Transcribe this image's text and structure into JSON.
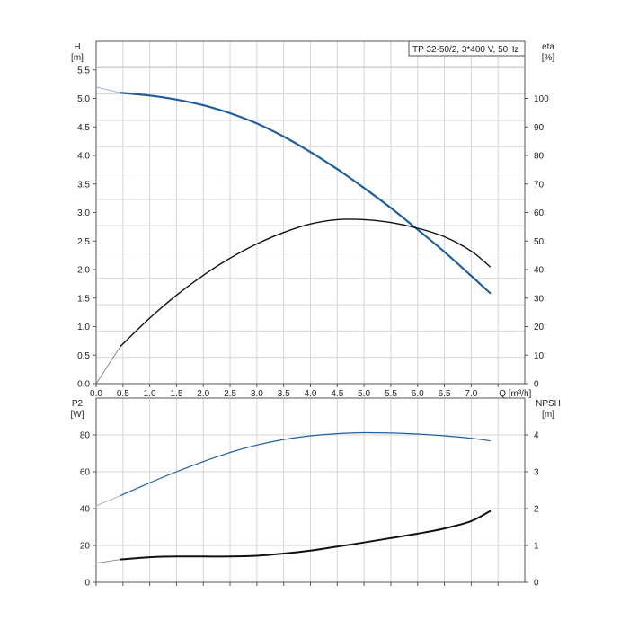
{
  "chart_data": [
    {
      "type": "line",
      "id": "top",
      "title": "TP 32-50/2, 3*400 V, 50Hz",
      "xlabel": "Q [m³/h]",
      "x_ticks": [
        "0.0",
        "0.5",
        "1.0",
        "1.5",
        "2.0",
        "2.5",
        "3.0",
        "3.5",
        "4.0",
        "4.5",
        "5.0",
        "5.5",
        "6.0",
        "6.5",
        "7.0"
      ],
      "xlim": [
        0,
        8.0
      ],
      "left_axis": {
        "label_line1": "H",
        "label_line2": "[m]",
        "ylim": [
          0,
          6.0
        ],
        "ticks": [
          "0.0",
          "0.5",
          "1.0",
          "1.5",
          "2.0",
          "2.5",
          "3.0",
          "3.5",
          "4.0",
          "4.5",
          "5.0",
          "5.5"
        ]
      },
      "right_axis": {
        "label_line1": "eta",
        "label_line2": "[%]",
        "ylim": [
          0,
          120
        ],
        "ticks": [
          "0",
          "10",
          "20",
          "30",
          "40",
          "50",
          "60",
          "70",
          "80",
          "90",
          "100"
        ]
      },
      "grid": true,
      "series": [
        {
          "axis": "left",
          "color": "#1f5fa0",
          "width": 2.2,
          "x": [
            0.45,
            1.0,
            1.5,
            2.0,
            2.5,
            3.0,
            3.5,
            4.0,
            4.5,
            5.0,
            5.5,
            6.0,
            6.5,
            7.0,
            7.35
          ],
          "y": [
            5.1,
            5.05,
            4.98,
            4.88,
            4.74,
            4.56,
            4.33,
            4.06,
            3.76,
            3.43,
            3.08,
            2.7,
            2.31,
            1.89,
            1.59
          ]
        },
        {
          "axis": "left",
          "color": "#8aa9c8",
          "width": 0.8,
          "x": [
            0.0,
            0.45
          ],
          "y": [
            5.2,
            5.1
          ]
        },
        {
          "axis": "right",
          "color": "#111111",
          "width": 1.4,
          "x": [
            0.45,
            1.0,
            1.5,
            2.0,
            2.5,
            3.0,
            3.5,
            4.0,
            4.5,
            5.0,
            5.5,
            6.0,
            6.5,
            7.0,
            7.35
          ],
          "y": [
            13,
            23,
            31,
            38,
            44,
            49,
            53,
            56,
            57.5,
            57.5,
            56.5,
            54.5,
            51.5,
            46.5,
            41
          ]
        },
        {
          "axis": "right",
          "color": "#777777",
          "width": 0.8,
          "x": [
            0.0,
            0.45
          ],
          "y": [
            0,
            13
          ]
        }
      ]
    },
    {
      "type": "line",
      "id": "bottom",
      "xlim": [
        0,
        8.0
      ],
      "left_axis": {
        "label_line1": "P2",
        "label_line2": "[W]",
        "ylim": [
          0,
          100
        ],
        "ticks": [
          "0",
          "20",
          "40",
          "60",
          "80"
        ]
      },
      "right_axis": {
        "label_line1": "NPSH",
        "label_line2": "[m]",
        "ylim": [
          0,
          5
        ],
        "ticks": [
          "0",
          "1",
          "2",
          "3",
          "4"
        ]
      },
      "grid": true,
      "series": [
        {
          "axis": "left",
          "color": "#1f5fa0",
          "width": 1.2,
          "x": [
            0.45,
            1.0,
            1.5,
            2.0,
            2.5,
            3.0,
            3.5,
            4.0,
            4.5,
            5.0,
            5.5,
            6.0,
            6.5,
            7.0,
            7.35
          ],
          "y": [
            47,
            54,
            60,
            65.5,
            70.5,
            74.5,
            77.5,
            79.5,
            80.7,
            81.2,
            81.0,
            80.5,
            79.5,
            78.2,
            76.8
          ]
        },
        {
          "axis": "left",
          "color": "#8aa9c8",
          "width": 0.8,
          "x": [
            0.0,
            0.45
          ],
          "y": [
            41.5,
            47
          ]
        },
        {
          "axis": "right",
          "color": "#111111",
          "width": 2.0,
          "x": [
            0.45,
            1.0,
            1.5,
            2.0,
            2.5,
            3.0,
            3.5,
            4.0,
            4.5,
            5.0,
            5.5,
            6.0,
            6.5,
            7.0,
            7.35
          ],
          "y": [
            0.62,
            0.68,
            0.7,
            0.7,
            0.7,
            0.72,
            0.78,
            0.86,
            0.97,
            1.08,
            1.2,
            1.32,
            1.46,
            1.66,
            1.93
          ]
        },
        {
          "axis": "right",
          "color": "#777777",
          "width": 0.8,
          "x": [
            0.0,
            0.45
          ],
          "y": [
            0.52,
            0.62
          ]
        }
      ]
    }
  ]
}
